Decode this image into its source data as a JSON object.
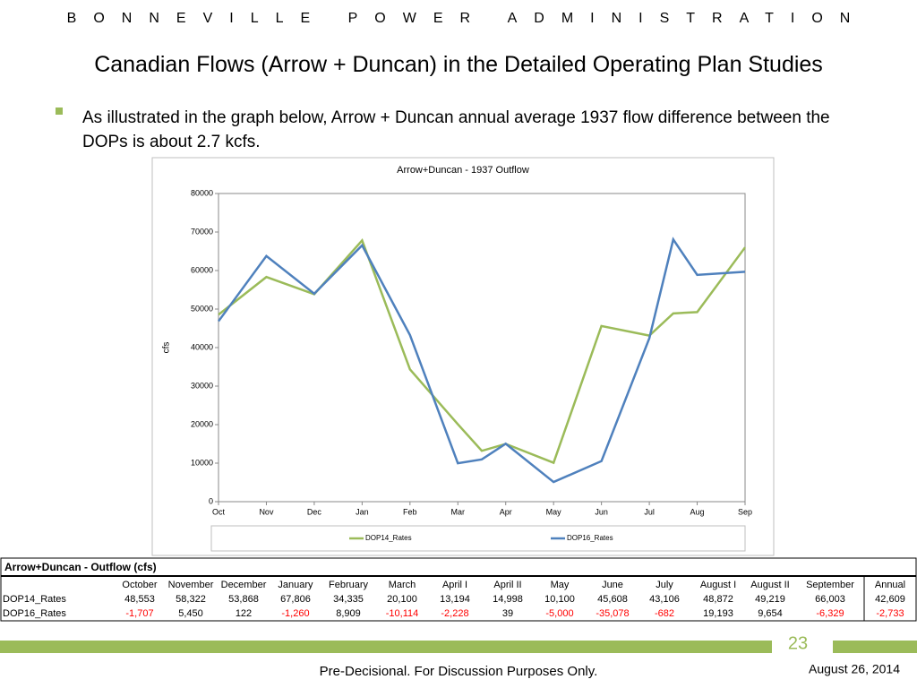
{
  "header": {
    "org": "BONNEVILLE POWER ADMINISTRATION",
    "title": "Canadian Flows (Arrow + Duncan) in the Detailed Operating Plan Studies",
    "bullet": "As illustrated in the graph below, Arrow + Duncan annual average 1937 flow difference between the DOPs is about 2.7 kcfs."
  },
  "chart_data": {
    "type": "line",
    "title": "Arrow+Duncan - 1937 Outflow",
    "y_label": "cfs",
    "x": [
      0,
      1,
      2,
      3,
      4,
      5,
      5.5,
      6,
      7,
      8,
      9,
      9.5,
      10,
      11
    ],
    "xlim": [
      0,
      11
    ],
    "xticks": [
      {
        "value": 0,
        "label": "Oct"
      },
      {
        "value": 1,
        "label": "Nov"
      },
      {
        "value": 2,
        "label": "Dec"
      },
      {
        "value": 3,
        "label": "Jan"
      },
      {
        "value": 4,
        "label": "Feb"
      },
      {
        "value": 5,
        "label": "Mar"
      },
      {
        "value": 6,
        "label": "Apr"
      },
      {
        "value": 7,
        "label": "May"
      },
      {
        "value": 8,
        "label": "Jun"
      },
      {
        "value": 9,
        "label": "Jul"
      },
      {
        "value": 10,
        "label": "Aug"
      },
      {
        "value": 11,
        "label": "Sep"
      }
    ],
    "ylim": [
      0,
      80000
    ],
    "yticks": [
      0,
      10000,
      20000,
      30000,
      40000,
      50000,
      60000,
      70000,
      80000
    ],
    "grid": false,
    "legend": "bottom",
    "series": [
      {
        "name": "DOP14_Rates",
        "color": "#9bbb59",
        "values": [
          48553,
          58322,
          53868,
          67806,
          34335,
          20100,
          13194,
          14998,
          10100,
          45608,
          43106,
          48872,
          49219,
          66003
        ]
      },
      {
        "name": "DOP16_Rates",
        "color": "#4f81bd",
        "values": [
          46846,
          63772,
          53990,
          66546,
          43244,
          9986,
          10966,
          15037,
          5100,
          10530,
          42424,
          68065,
          58873,
          59674
        ]
      }
    ]
  },
  "table": {
    "title": "Arrow+Duncan - Outflow (cfs)",
    "negative_color": "#ff0000",
    "columns": [
      "October",
      "November",
      "December",
      "January",
      "February",
      "March",
      "April I",
      "April II",
      "May",
      "June",
      "July",
      "August I",
      "August II",
      "September",
      "Annual"
    ],
    "rows": [
      [
        "DOP14_Rates",
        "48,553",
        "58,322",
        "53,868",
        "67,806",
        "34,335",
        "20,100",
        "13,194",
        "14,998",
        "10,100",
        "45,608",
        "43,106",
        "48,872",
        "49,219",
        "66,003",
        "42,609"
      ],
      [
        "DOP16_Rates",
        "-1,707",
        "5,450",
        "122",
        "-1,260",
        "8,909",
        "-10,114",
        "-2,228",
        "39",
        "-5,000",
        "-35,078",
        "-682",
        "19,193",
        "9,654",
        "-6,329",
        "-2,733"
      ]
    ]
  },
  "footer": {
    "page": "23",
    "note": "Pre-Decisional.  For Discussion Purposes Only.",
    "date": "August 26, 2014"
  }
}
